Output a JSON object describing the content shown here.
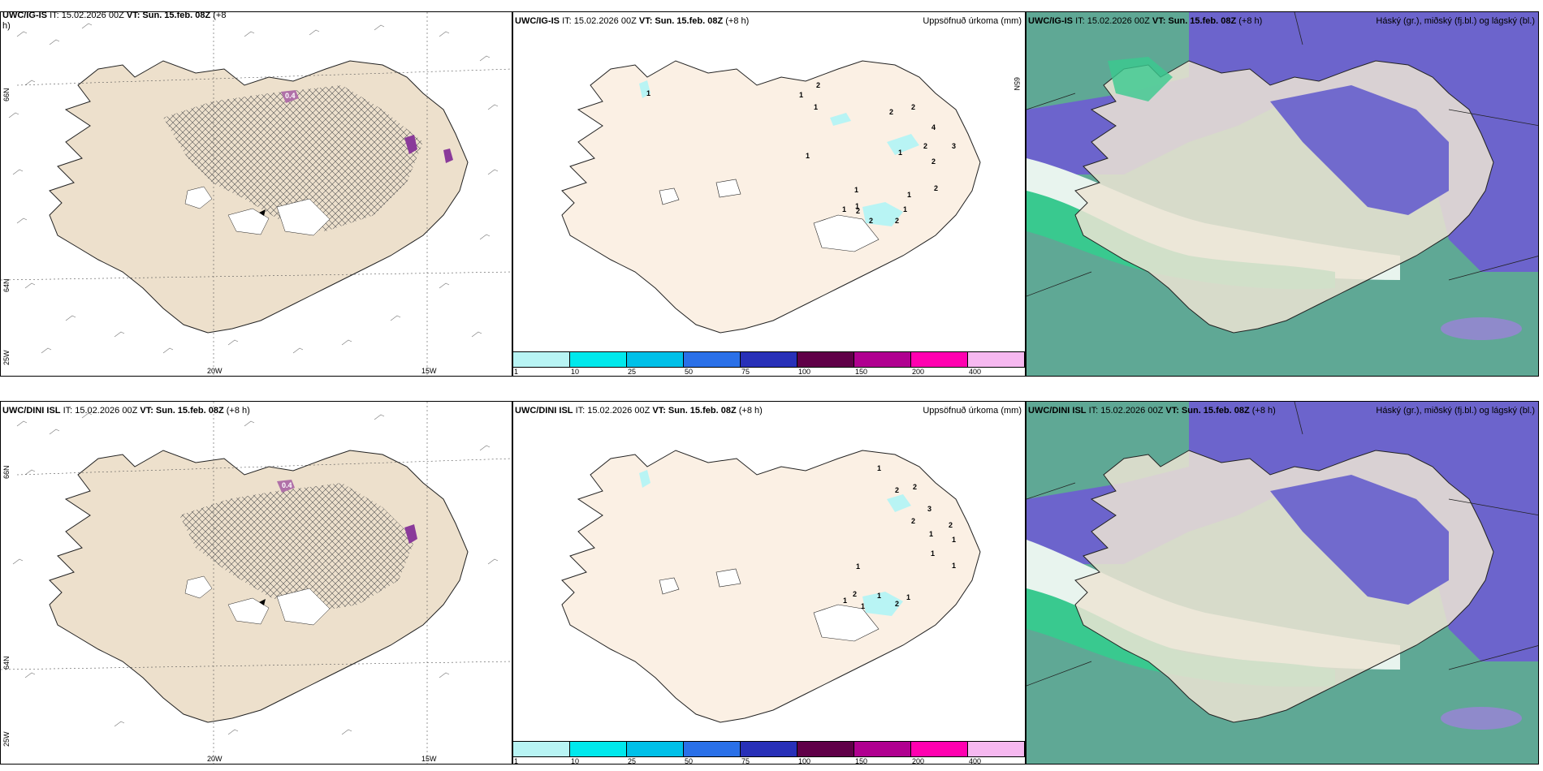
{
  "panels": {
    "p1": {
      "model": "UWC/IG-IS",
      "it": "IT: 15.02.2026 00Z",
      "vt_label": "VT:",
      "vt": "Sun. 15.feb. 08Z",
      "lead": "(+8",
      "lead2": "h)"
    },
    "p2": {
      "model": "UWC/IG-IS",
      "it": "IT: 15.02.2026 00Z",
      "vt_label": "VT:",
      "vt": "Sun. 15.feb. 08Z",
      "lead": "(+8 h)",
      "right": "Uppsöfnuð úrkoma (mm)"
    },
    "p3": {
      "model": "UWC/IG-IS",
      "it": "IT: 15.02.2026 00Z",
      "vt_label": "VT:",
      "vt": "Sun. 15.feb. 08Z",
      "lead": "(+8 h)",
      "right": "Háský (gr.), miðský (fj.bl.) og lágský (bl.)"
    },
    "p4": {
      "model": "UWC/DINI ISL",
      "it": "IT: 15.02.2026 00Z",
      "vt_label": "VT:",
      "vt": "Sun. 15.feb. 08Z",
      "lead": "(+8 h)"
    },
    "p5": {
      "model": "UWC/DINI ISL",
      "it": "IT: 15.02.2026 00Z",
      "vt_label": "VT:",
      "vt": "Sun. 15.feb. 08Z",
      "lead": "(+8 h)",
      "right": "Uppsöfnuð úrkoma (mm)"
    },
    "p6": {
      "model": "UWC/DINI ISL",
      "it": "IT: 15.02.2026 00Z",
      "vt_label": "VT:",
      "vt": "Sun. 15.feb. 08Z",
      "lead": "(+8 h)",
      "right": "Háský (gr.), miðský (fj.bl.) og lágský (bl.)"
    }
  },
  "grid": {
    "lat66": "66N",
    "lat64": "64N",
    "lat65": "65N",
    "lon25": "25W",
    "lon20": "20W",
    "lon15": "15W"
  },
  "colorbar": {
    "ticks": [
      "1",
      "10",
      "25",
      "50",
      "75",
      "100",
      "150",
      "200",
      "400"
    ],
    "colors": [
      "#b8f4f4",
      "#00e8ec",
      "#00c0e8",
      "#2a70e8",
      "#2830b8",
      "#600048",
      "#b00090",
      "#ff00b0",
      "#f6b8f0"
    ]
  },
  "labels": {
    "top_precip": [
      "2",
      "1",
      "1",
      "1",
      "2",
      "2",
      "2",
      "4",
      "3",
      "1",
      "2",
      "2",
      "1",
      "1",
      "1",
      "1",
      "2",
      "2",
      "2",
      "1",
      "1"
    ],
    "bottom_precip": [
      "1",
      "2",
      "2",
      "3",
      "2",
      "2",
      "1",
      "1",
      "1",
      "1",
      "1",
      "1",
      "2",
      "1",
      "1",
      "1",
      "2"
    ],
    "cloud_top_label": "0.4",
    "cloud_bottom_label": "0.4"
  }
}
